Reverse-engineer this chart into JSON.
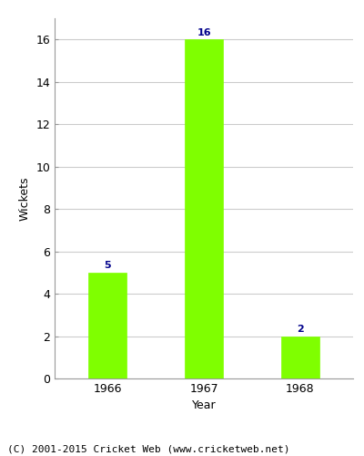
{
  "categories": [
    "1966",
    "1967",
    "1968"
  ],
  "values": [
    5,
    16,
    2
  ],
  "bar_color": "#7FFF00",
  "bar_edgecolor": "#7FFF00",
  "ylabel": "Wickets",
  "xlabel": "Year",
  "ylim": [
    0,
    17
  ],
  "yticks": [
    0,
    2,
    4,
    6,
    8,
    10,
    12,
    14,
    16
  ],
  "value_label_color": "#00008B",
  "value_label_fontsize": 8,
  "axis_label_fontsize": 9,
  "tick_fontsize": 9,
  "grid_color": "#cccccc",
  "background_color": "#ffffff",
  "border_color": "#999999",
  "footer_text": "(C) 2001-2015 Cricket Web (www.cricketweb.net)",
  "footer_fontsize": 8,
  "bar_width": 0.4
}
